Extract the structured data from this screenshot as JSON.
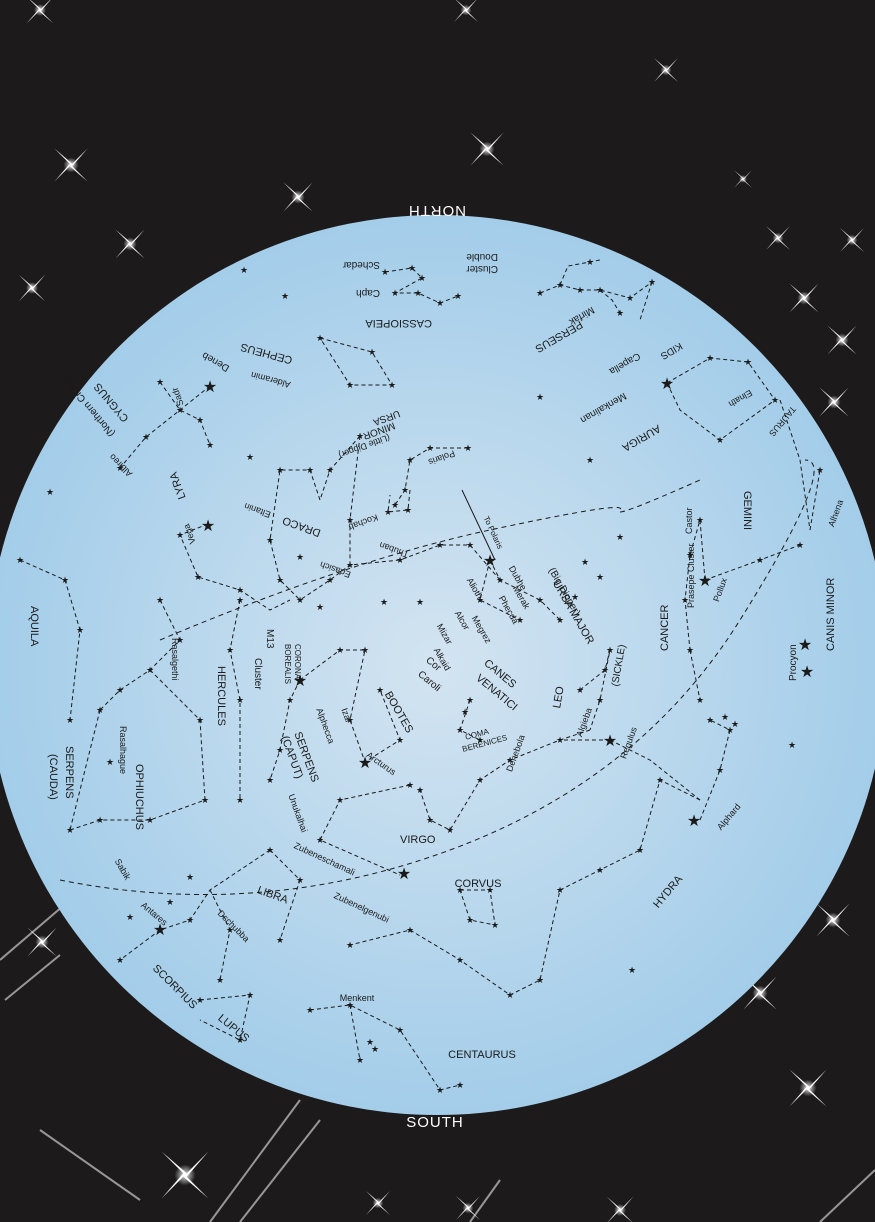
{
  "map": {
    "north": "NORTH",
    "south": "SOUTH",
    "colors": {
      "background": "#1c1a1b",
      "sky_center": "#cfe2f1",
      "sky_edge": "#a5cfea",
      "ink": "#1a1a1a",
      "sparkle": "#ffffff"
    },
    "labels": {
      "schedar": "Schedar",
      "caph": "Caph",
      "cassiopeia": "CASSIOPEIA",
      "double_cluster_1": "Double",
      "double_cluster_2": "Cluster",
      "mirfak": "Mirfak",
      "perseus": "PERSEUS",
      "kids": "KIDS",
      "capella": "Capella",
      "menkalinan": "Menkalinan",
      "auriga": "AURIGA",
      "elnath": "Elnath",
      "taurus": "TAURUS",
      "cepheus": "CEPHEUS",
      "alderamin": "Alderamin",
      "deneb": "Deneb",
      "sadr": "Sadr",
      "cygnus": "CYGNUS",
      "northern_cross": "(Northern Cross)",
      "albireo": "Albireo",
      "polaris": "Polaris",
      "ursa_minor_1": "URSA",
      "ursa_minor_2": "MINOR",
      "little_dipper": "(Little Dipper)",
      "kochab": "Kochab",
      "eltanin": "Eltanin",
      "draco": "DRACO",
      "lyra": "LYRA",
      "vega": "Vega",
      "to_polaris": "To Polaris",
      "dubhe": "Dubhe",
      "merak": "Merak",
      "phecda": "Phecda",
      "ursa_major": "URSA MAJOR",
      "big_dipper": "(Big Dipper)",
      "megrez": "Megrez",
      "alioth": "Alioth",
      "mizar": "Mizar",
      "alcor": "Alcor",
      "alkaid": "Alkaid",
      "thuban": "Thuban",
      "edasich": "Edasich",
      "gemini": "GEMINI",
      "castor": "Castor",
      "pollux": "Pollux",
      "alhena": "Alhena",
      "praesepe": "Prasepe Cluster",
      "canis_minor": "CANIS MINOR",
      "procyon": "Procyon",
      "cancer": "CANCER",
      "aquila": "AQUILA",
      "rasalgethi": "Rasalgethi",
      "hercules": "HERCULES",
      "m13": "M13",
      "cluster": "Cluster",
      "corona_1": "CORONA",
      "corona_2": "BOREALIS",
      "alphecca": "Alphecca",
      "bootes": "BOOTES",
      "izar": "Izar",
      "arcturus": "Arcturus",
      "cor": "Cor",
      "caroli": "Caroli",
      "canes": "CANES",
      "venatici": "VENATICI",
      "leo": "LEO",
      "sickle": "(SICKLE)",
      "algieba": "Algieba",
      "regulus": "Regulus",
      "denebola": "Denebola",
      "coma_1": "COMA",
      "coma_2": "BERENICES",
      "serpens_cauda_1": "SERPENS",
      "serpens_cauda_2": "(CAUDA)",
      "rasalhague": "Rasalhague",
      "ophiuchus": "OPHIUCHUS",
      "serpens_caput_1": "SERPENS",
      "serpens_caput_2": "(CAPUT)",
      "unukalhai": "Unukalhai",
      "virgo": "VIRGO",
      "zubeneschamali": "Zubeneschamali",
      "zubenelgenubi": "Zubenelgenubi",
      "libra": "LIBRA",
      "sabik": "Sabik",
      "antares": "Antares",
      "dschubba": "Dschubba",
      "scorpius": "SCORPIUS",
      "lupus": "LUPUS",
      "corvus": "CORVUS",
      "hydra": "HYDRA",
      "alphard": "Alphard",
      "menkent": "Menkent",
      "centaurus": "CENTAURUS"
    }
  }
}
